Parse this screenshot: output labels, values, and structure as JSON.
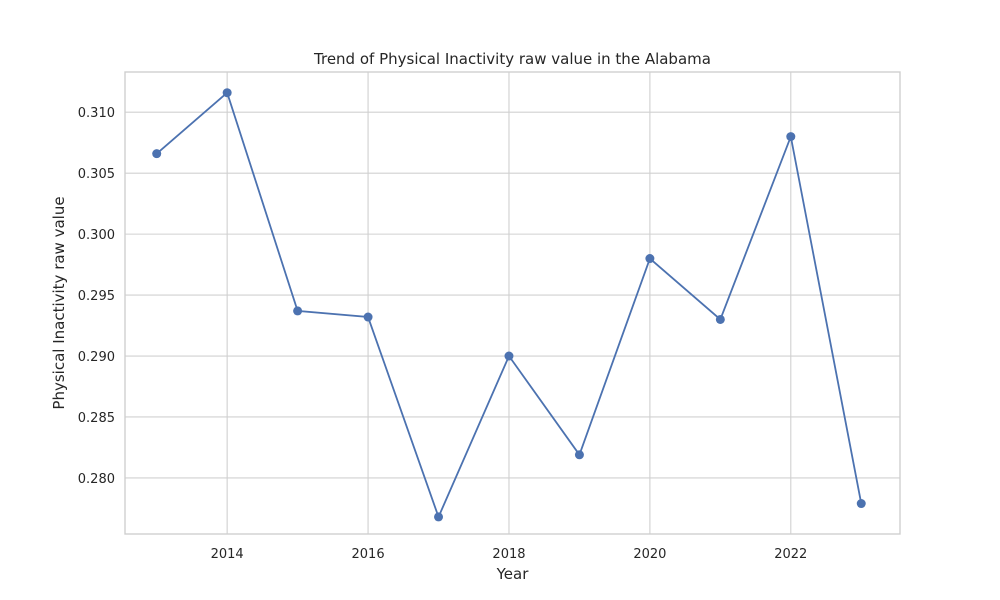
{
  "chart_data": {
    "type": "line",
    "title": "Trend of Physical Inactivity raw value in the Alabama",
    "xlabel": "Year",
    "ylabel": "Physical Inactivity raw value",
    "x": [
      2013,
      2014,
      2015,
      2016,
      2017,
      2018,
      2019,
      2020,
      2021,
      2022,
      2023
    ],
    "series": [
      {
        "values": [
          0.3066,
          0.3116,
          0.2937,
          0.2932,
          0.2768,
          0.29,
          0.2819,
          0.298,
          0.293,
          0.308,
          0.2779
        ],
        "color": "#4c72b0",
        "marker": "circle"
      }
    ],
    "xlim": [
      2012.55,
      2023.55
    ],
    "ylim": [
      0.2754,
      0.3133
    ],
    "xticks": [
      2014,
      2016,
      2018,
      2020,
      2022
    ],
    "yticks": [
      0.28,
      0.285,
      0.29,
      0.295,
      0.3,
      0.305,
      0.31
    ],
    "ytick_labels": [
      "0.280",
      "0.285",
      "0.290",
      "0.295",
      "0.300",
      "0.305",
      "0.310"
    ],
    "grid": true,
    "background": "#ffffff",
    "grid_color": "#d0d0d0"
  }
}
